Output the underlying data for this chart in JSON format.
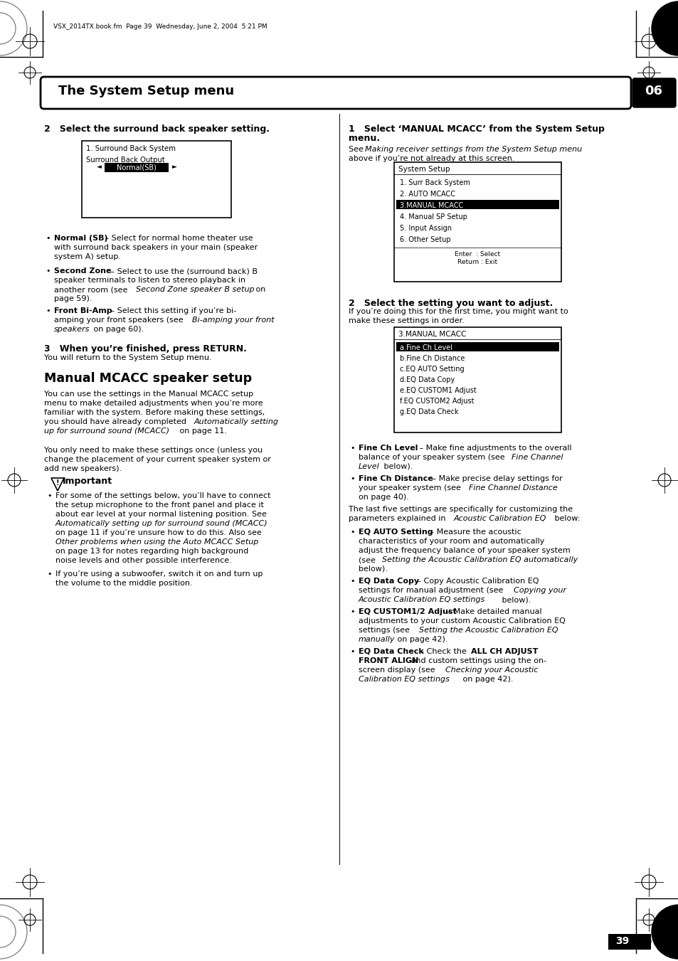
{
  "page_bg": "#ffffff",
  "header_bar_text": "The System Setup menu",
  "header_num": "06",
  "top_file_text": "VSX_2014TX.book.fm  Page 39  Wednesday, June 2, 2004  5:21 PM",
  "page_num": "39",
  "screen1_title": "1. Surround Back System",
  "screen1_label": "Surround Back Output",
  "screen1_value": "Normal(SB)",
  "screen2_title": "System Setup",
  "screen2_items": [
    "1. Surr Back System",
    "2. AUTO MCACC",
    "3.MANUAL MCACC",
    "4. Manual SP Setup",
    "5. Input Assign",
    "6. Other Setup"
  ],
  "screen2_selected": "3.MANUAL MCACC",
  "screen3_title": "3.MANUAL MCACC",
  "screen3_items": [
    "a.Fine Ch Level",
    "b.Fine Ch Distance",
    "c.EQ AUTO Setting",
    "d.EQ Data Copy",
    "e.EQ CUSTOM1 Adjust",
    "f.EQ CUSTOM2 Adjust",
    "g.EQ Data Check"
  ],
  "screen3_selected": "a.Fine Ch Level"
}
